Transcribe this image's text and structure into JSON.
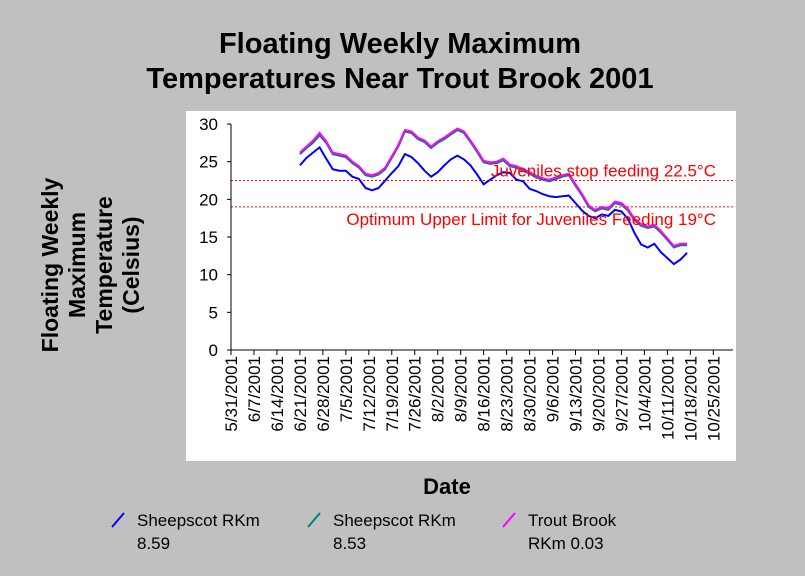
{
  "chart_data": {
    "type": "line",
    "title_lines": [
      "Floating Weekly Maximum",
      "Temperatures Near Trout Brook 2001"
    ],
    "ylabel_lines": [
      "Floating Weekly",
      "Maximum",
      "Temperature",
      "(Celsius)"
    ],
    "xlabel": "Date",
    "ylim": [
      0,
      30
    ],
    "yticks": [
      0,
      5,
      10,
      15,
      20,
      25,
      30
    ],
    "x_axis_start": "2001-05-31",
    "x_axis_end": "2001-10-31",
    "xticks": [
      "5/31/2001",
      "6/7/2001",
      "6/14/2001",
      "6/21/2001",
      "6/28/2001",
      "7/5/2001",
      "7/12/2001",
      "7/19/2001",
      "7/26/2001",
      "8/2/2001",
      "8/9/2001",
      "8/16/2001",
      "8/23/2001",
      "8/30/2001",
      "9/6/2001",
      "9/13/2001",
      "9/20/2001",
      "9/27/2001",
      "10/4/2001",
      "10/11/2001",
      "10/18/2001",
      "10/25/2001"
    ],
    "reference_lines": [
      {
        "value": 22.5,
        "label": "Juveniles stop feeding 22.5°C",
        "color": "#ff0000"
      },
      {
        "value": 19,
        "label": "Optimum Upper Limit for Juveniles Feeding 19°C",
        "color": "#ff0000"
      }
    ],
    "legend_position": "bottom",
    "series": [
      {
        "name_lines": [
          "Sheepscot RKm",
          "8.59"
        ],
        "color": "#0000ff",
        "points": [
          [
            "2001-06-21",
            24.5
          ],
          [
            "2001-06-23",
            25.5
          ],
          [
            "2001-06-25",
            26.2
          ],
          [
            "2001-06-27",
            26.9
          ],
          [
            "2001-06-29",
            25.4
          ],
          [
            "2001-07-01",
            24.0
          ],
          [
            "2001-07-03",
            23.8
          ],
          [
            "2001-07-05",
            23.8
          ],
          [
            "2001-07-07",
            23.0
          ],
          [
            "2001-07-09",
            22.7
          ],
          [
            "2001-07-11",
            21.5
          ],
          [
            "2001-07-13",
            21.2
          ],
          [
            "2001-07-15",
            21.5
          ],
          [
            "2001-07-17",
            22.5
          ],
          [
            "2001-07-19",
            23.5
          ],
          [
            "2001-07-21",
            24.4
          ],
          [
            "2001-07-23",
            26.0
          ],
          [
            "2001-07-25",
            25.6
          ],
          [
            "2001-07-27",
            24.8
          ],
          [
            "2001-07-29",
            23.8
          ],
          [
            "2001-07-31",
            23.0
          ],
          [
            "2001-08-02",
            23.6
          ],
          [
            "2001-08-04",
            24.5
          ],
          [
            "2001-08-06",
            25.3
          ],
          [
            "2001-08-08",
            25.8
          ],
          [
            "2001-08-10",
            25.3
          ],
          [
            "2001-08-12",
            24.5
          ],
          [
            "2001-08-14",
            23.3
          ],
          [
            "2001-08-16",
            22.0
          ],
          [
            "2001-08-18",
            22.6
          ],
          [
            "2001-08-20",
            23.2
          ],
          [
            "2001-08-22",
            23.6
          ],
          [
            "2001-08-24",
            23.5
          ],
          [
            "2001-08-26",
            22.6
          ],
          [
            "2001-08-28",
            22.4
          ],
          [
            "2001-08-30",
            21.4
          ],
          [
            "2001-09-01",
            21.1
          ],
          [
            "2001-09-03",
            20.7
          ],
          [
            "2001-09-05",
            20.4
          ],
          [
            "2001-09-07",
            20.3
          ],
          [
            "2001-09-09",
            20.4
          ],
          [
            "2001-09-11",
            20.5
          ],
          [
            "2001-09-13",
            19.5
          ],
          [
            "2001-09-15",
            18.5
          ],
          [
            "2001-09-17",
            17.8
          ],
          [
            "2001-09-19",
            17.5
          ],
          [
            "2001-09-21",
            18.0
          ],
          [
            "2001-09-23",
            17.8
          ],
          [
            "2001-09-25",
            18.6
          ],
          [
            "2001-09-27",
            18.4
          ],
          [
            "2001-09-29",
            17.4
          ],
          [
            "2001-10-01",
            15.5
          ],
          [
            "2001-10-03",
            14.0
          ],
          [
            "2001-10-05",
            13.6
          ],
          [
            "2001-10-07",
            14.1
          ],
          [
            "2001-10-09",
            13.0
          ],
          [
            "2001-10-11",
            12.2
          ],
          [
            "2001-10-13",
            11.4
          ],
          [
            "2001-10-15",
            12.0
          ],
          [
            "2001-10-17",
            12.9
          ]
        ]
      },
      {
        "name_lines": [
          "Sheepscot RKm",
          "8.53"
        ],
        "color": "#008080",
        "points": [
          [
            "2001-06-21",
            26.0
          ],
          [
            "2001-06-23",
            26.8
          ],
          [
            "2001-06-25",
            27.5
          ],
          [
            "2001-06-27",
            28.5
          ],
          [
            "2001-06-29",
            27.5
          ],
          [
            "2001-07-01",
            26.0
          ],
          [
            "2001-07-03",
            25.8
          ],
          [
            "2001-07-05",
            25.6
          ],
          [
            "2001-07-07",
            24.8
          ],
          [
            "2001-07-09",
            24.2
          ],
          [
            "2001-07-11",
            23.2
          ],
          [
            "2001-07-13",
            23.0
          ],
          [
            "2001-07-15",
            23.3
          ],
          [
            "2001-07-17",
            24.0
          ],
          [
            "2001-07-19",
            25.5
          ],
          [
            "2001-07-21",
            27.0
          ],
          [
            "2001-07-23",
            29.0
          ],
          [
            "2001-07-25",
            28.8
          ],
          [
            "2001-07-27",
            28.0
          ],
          [
            "2001-07-29",
            27.6
          ],
          [
            "2001-07-31",
            26.8
          ],
          [
            "2001-08-02",
            27.5
          ],
          [
            "2001-08-04",
            28.0
          ],
          [
            "2001-08-06",
            28.6
          ],
          [
            "2001-08-08",
            29.2
          ],
          [
            "2001-08-10",
            28.8
          ],
          [
            "2001-08-12",
            27.6
          ],
          [
            "2001-08-14",
            26.3
          ],
          [
            "2001-08-16",
            24.9
          ],
          [
            "2001-08-18",
            24.7
          ],
          [
            "2001-08-20",
            24.8
          ],
          [
            "2001-08-22",
            25.2
          ],
          [
            "2001-08-24",
            24.4
          ],
          [
            "2001-08-26",
            24.2
          ],
          [
            "2001-08-28",
            23.8
          ],
          [
            "2001-08-30",
            23.4
          ],
          [
            "2001-09-01",
            22.9
          ],
          [
            "2001-09-03",
            22.6
          ],
          [
            "2001-09-05",
            22.4
          ],
          [
            "2001-09-07",
            22.7
          ],
          [
            "2001-09-09",
            23.0
          ],
          [
            "2001-09-11",
            23.2
          ],
          [
            "2001-09-13",
            21.8
          ],
          [
            "2001-09-15",
            20.5
          ],
          [
            "2001-09-17",
            19.0
          ],
          [
            "2001-09-19",
            18.4
          ],
          [
            "2001-09-21",
            18.8
          ],
          [
            "2001-09-23",
            18.6
          ],
          [
            "2001-09-25",
            19.5
          ],
          [
            "2001-09-27",
            19.3
          ],
          [
            "2001-09-29",
            18.5
          ],
          [
            "2001-10-01",
            17.2
          ],
          [
            "2001-10-03",
            16.5
          ],
          [
            "2001-10-05",
            16.2
          ],
          [
            "2001-10-07",
            16.4
          ],
          [
            "2001-10-09",
            15.6
          ],
          [
            "2001-10-11",
            14.6
          ],
          [
            "2001-10-13",
            13.6
          ],
          [
            "2001-10-15",
            13.9
          ],
          [
            "2001-10-17",
            13.9
          ]
        ]
      },
      {
        "name_lines": [
          "Trout Brook",
          "RKm 0.03"
        ],
        "color": "#ff00ff",
        "points": [
          [
            "2001-06-21",
            26.2
          ],
          [
            "2001-06-23",
            27.0
          ],
          [
            "2001-06-25",
            27.8
          ],
          [
            "2001-06-27",
            28.8
          ],
          [
            "2001-06-29",
            27.7
          ],
          [
            "2001-07-01",
            26.2
          ],
          [
            "2001-07-03",
            26.0
          ],
          [
            "2001-07-05",
            25.8
          ],
          [
            "2001-07-07",
            25.0
          ],
          [
            "2001-07-09",
            24.4
          ],
          [
            "2001-07-11",
            23.4
          ],
          [
            "2001-07-13",
            23.2
          ],
          [
            "2001-07-15",
            23.5
          ],
          [
            "2001-07-17",
            24.2
          ],
          [
            "2001-07-19",
            25.7
          ],
          [
            "2001-07-21",
            27.2
          ],
          [
            "2001-07-23",
            29.2
          ],
          [
            "2001-07-25",
            29.0
          ],
          [
            "2001-07-27",
            28.2
          ],
          [
            "2001-07-29",
            27.8
          ],
          [
            "2001-07-31",
            27.0
          ],
          [
            "2001-08-02",
            27.7
          ],
          [
            "2001-08-04",
            28.2
          ],
          [
            "2001-08-06",
            28.8
          ],
          [
            "2001-08-08",
            29.4
          ],
          [
            "2001-08-10",
            29.0
          ],
          [
            "2001-08-12",
            27.8
          ],
          [
            "2001-08-14",
            26.5
          ],
          [
            "2001-08-16",
            25.1
          ],
          [
            "2001-08-18",
            24.9
          ],
          [
            "2001-08-20",
            25.0
          ],
          [
            "2001-08-22",
            25.4
          ],
          [
            "2001-08-24",
            24.6
          ],
          [
            "2001-08-26",
            24.4
          ],
          [
            "2001-08-28",
            24.0
          ],
          [
            "2001-08-30",
            23.6
          ],
          [
            "2001-09-01",
            23.1
          ],
          [
            "2001-09-03",
            22.8
          ],
          [
            "2001-09-05",
            22.6
          ],
          [
            "2001-09-07",
            22.9
          ],
          [
            "2001-09-09",
            23.2
          ],
          [
            "2001-09-11",
            23.4
          ],
          [
            "2001-09-13",
            22.0
          ],
          [
            "2001-09-15",
            20.7
          ],
          [
            "2001-09-17",
            19.2
          ],
          [
            "2001-09-19",
            18.6
          ],
          [
            "2001-09-21",
            19.0
          ],
          [
            "2001-09-23",
            18.8
          ],
          [
            "2001-09-25",
            19.7
          ],
          [
            "2001-09-27",
            19.5
          ],
          [
            "2001-09-29",
            18.7
          ],
          [
            "2001-10-01",
            17.4
          ],
          [
            "2001-10-03",
            16.7
          ],
          [
            "2001-10-05",
            16.4
          ],
          [
            "2001-10-07",
            16.6
          ],
          [
            "2001-10-09",
            15.8
          ],
          [
            "2001-10-11",
            14.8
          ],
          [
            "2001-10-13",
            13.8
          ],
          [
            "2001-10-15",
            14.1
          ],
          [
            "2001-10-17",
            14.1
          ]
        ]
      }
    ]
  }
}
